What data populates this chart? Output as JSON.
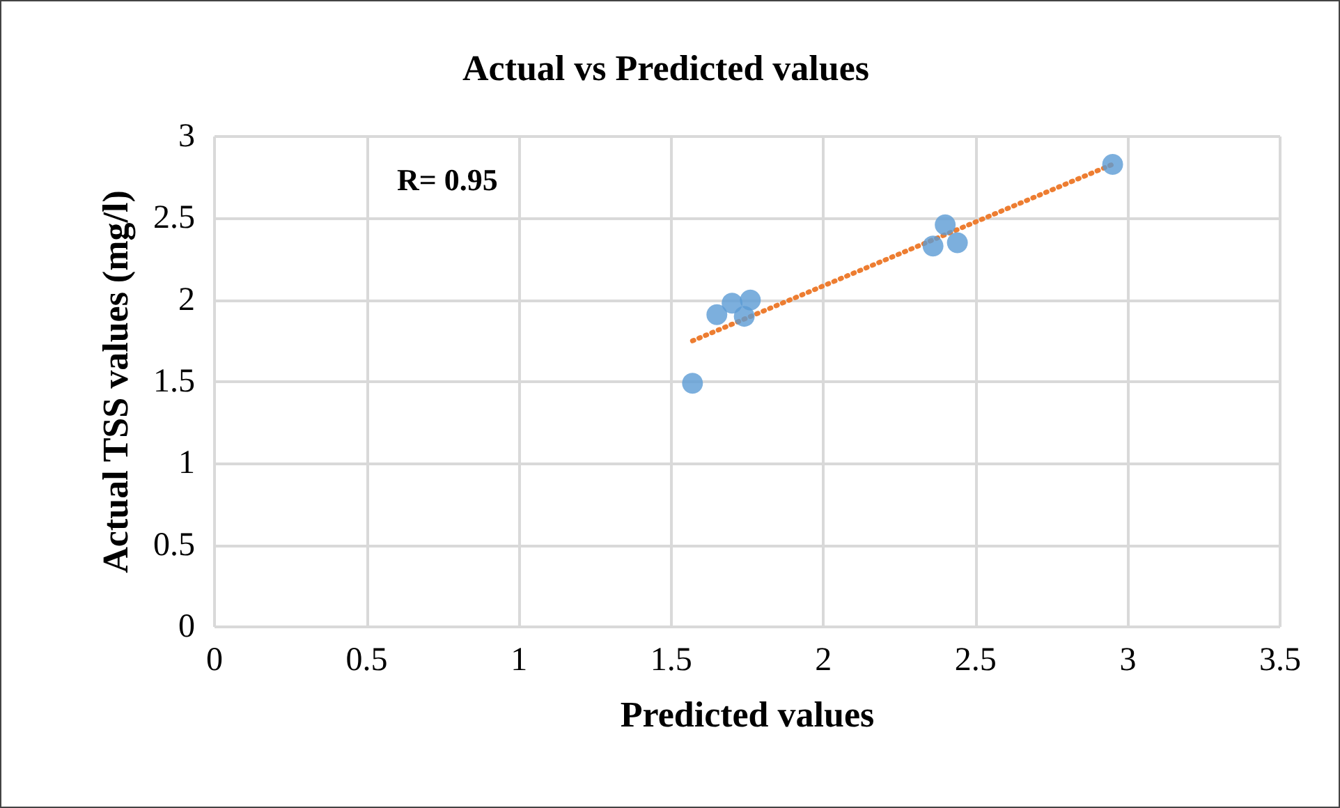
{
  "chart_data": {
    "type": "scatter",
    "title": "Actual vs Predicted values",
    "xlabel": "Predicted values",
    "ylabel": "Actual TSS values (mg/l)",
    "annotations": [
      "R= 0.95"
    ],
    "x": [
      1.57,
      1.65,
      1.7,
      1.74,
      1.76,
      2.36,
      2.4,
      2.44,
      2.95
    ],
    "series": [
      {
        "color": "#5b9bd5",
        "marker": "circle",
        "values": [
          1.49,
          1.91,
          1.98,
          1.9,
          2.0,
          2.33,
          2.46,
          2.35,
          2.83
        ]
      },
      {
        "type": "line",
        "color": "#ed7d31",
        "line_style": "dotted",
        "marker": "none",
        "x": [
          1.57,
          2.95
        ],
        "values": [
          1.75,
          2.83
        ]
      }
    ],
    "xlim": [
      0,
      3.5
    ],
    "xticks": [
      0,
      0.5,
      1,
      1.5,
      2,
      2.5,
      3,
      3.5
    ],
    "ylim": [
      0,
      3
    ],
    "yticks": [
      0,
      0.5,
      1,
      1.5,
      2,
      2.5,
      3
    ],
    "grid": true
  }
}
